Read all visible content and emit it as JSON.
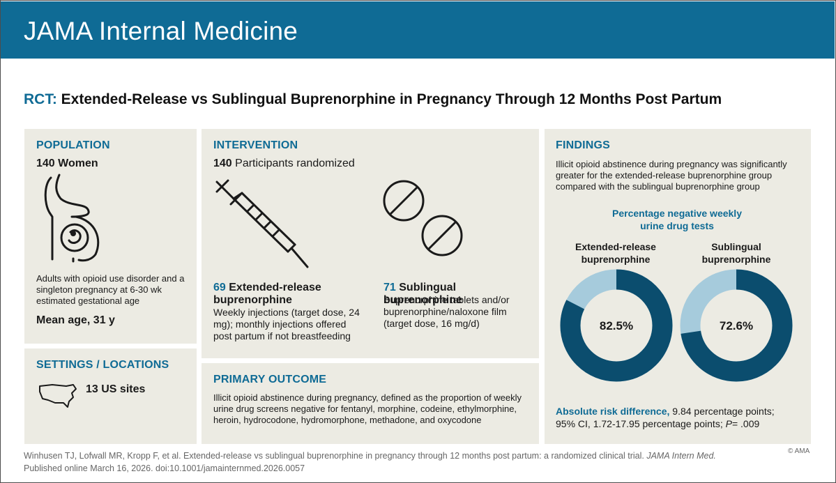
{
  "header": {
    "journal": "JAMA Internal Medicine"
  },
  "title": {
    "prefix": "RCT:",
    "text": "Extended-Release vs Sublingual Buprenorphine in Pregnancy Through 12 Months Post Partum"
  },
  "population": {
    "heading": "POPULATION",
    "count": "140",
    "count_label": "Women",
    "description": "Adults with opioid use disorder and a singleton pregnancy at 6-30 wk estimated gestational age",
    "mean_age": "Mean age, 31 y"
  },
  "settings": {
    "heading": "SETTINGS / LOCATIONS",
    "sites": "13 US sites"
  },
  "intervention": {
    "heading": "INTERVENTION",
    "count": "140",
    "count_label": "Participants randomized",
    "arm1": {
      "n": "69",
      "name": "Extended-release buprenorphine",
      "detail": "Weekly injections (target dose, 24 mg); monthly injections offered post partum if not breastfeeding"
    },
    "arm2": {
      "n": "71",
      "name": "Sublingual buprenorphine",
      "detail": "Buprenorphine tablets and/or buprenorphine/naloxone film (target dose, 16 mg/d)"
    }
  },
  "outcome": {
    "heading": "PRIMARY OUTCOME",
    "text": "Illicit opioid abstinence during pregnancy, defined as the proportion of weekly urine drug screens negative for fentanyl, morphine, codeine, ethylmorphine, heroin, hydrocodone, hydromorphone, methadone, and oxycodone"
  },
  "findings": {
    "heading": "FINDINGS",
    "summary": "Illicit opioid abstinence during pregnancy was significantly greater for the extended-release buprenorphine group compared with the sublingual buprenorphine group",
    "ard_label": "Absolute risk difference,",
    "ard_value": "9.84 percentage points;",
    "ci": "95% CI, 1.72-17.95 percentage points;",
    "p_label": "P",
    "p_value": "= .009"
  },
  "chart_data": {
    "type": "pie",
    "title": "Percentage negative weekly urine drug tests",
    "series": [
      {
        "name": "Extended-release buprenorphine",
        "value": 82.5,
        "label": "82.5%"
      },
      {
        "name": "Sublingual buprenorphine",
        "value": 72.6,
        "label": "72.6%"
      }
    ],
    "colors": {
      "value": "#0b4d6e",
      "remainder": "#a6cbdc"
    }
  },
  "footer": {
    "citation_plain": "Winhusen TJ, Lofwall MR, Kropp F, et al. Extended-release vs sublingual buprenorphine in pregnancy through 12 months post partum: a randomized clinical trial.",
    "citation_journal": "JAMA Intern Med.",
    "citation_pub": "Published online March 16, 2026. doi:10.1001/jamainternmed.2026.0057",
    "copyright": "© AMA"
  }
}
